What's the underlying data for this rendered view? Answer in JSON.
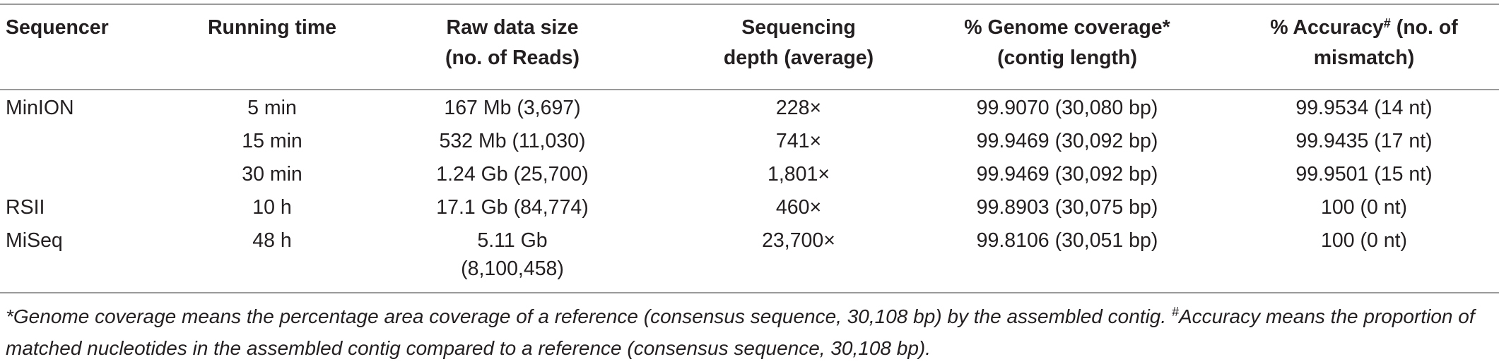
{
  "table": {
    "headers": {
      "sequencer": "Sequencer",
      "running_time": "Running time",
      "raw_data_line1": "Raw data size",
      "raw_data_line2": "(no. of Reads)",
      "depth_line1": "Sequencing",
      "depth_line2": "depth (average)",
      "coverage_line1": "% Genome coverage*",
      "coverage_line2": "(contig length)",
      "accuracy_line1_pre": "% Accuracy",
      "accuracy_line1_sup": "#",
      "accuracy_line1_post": " (no. of",
      "accuracy_line2": "mismatch)"
    },
    "rows": [
      {
        "sequencer": "MinION",
        "running_time": "5 min",
        "raw_data": "167 Mb (3,697)",
        "depth": "228×",
        "coverage": "99.9070 (30,080 bp)",
        "accuracy": "99.9534 (14 nt)"
      },
      {
        "sequencer": "",
        "running_time": "15 min",
        "raw_data": "532 Mb (11,030)",
        "depth": "741×",
        "coverage": "99.9469 (30,092 bp)",
        "accuracy": "99.9435 (17 nt)"
      },
      {
        "sequencer": "",
        "running_time": "30 min",
        "raw_data": "1.24 Gb (25,700)",
        "depth": "1,801×",
        "coverage": "99.9469 (30,092 bp)",
        "accuracy": "99.9501 (15 nt)"
      },
      {
        "sequencer": "RSII",
        "running_time": "10 h",
        "raw_data": "17.1 Gb (84,774)",
        "depth": "460×",
        "coverage": "99.8903 (30,075 bp)",
        "accuracy": "100 (0 nt)"
      },
      {
        "sequencer": "MiSeq",
        "running_time": "48 h",
        "raw_data": "5.11 Gb",
        "raw_data_line2": "(8,100,458)",
        "depth": "23,700×",
        "coverage": "99.8106 (30,051 bp)",
        "accuracy": "100 (0 nt)"
      }
    ]
  },
  "footnote": {
    "part1": "*Genome coverage means the percentage area coverage of a reference (consensus sequence, 30,108 bp) by the assembled contig. ",
    "sup": "#",
    "part2": "Accuracy means the proportion of matched nucleotides in the assembled contig compared to a reference (consensus sequence, 30,108 bp)."
  }
}
